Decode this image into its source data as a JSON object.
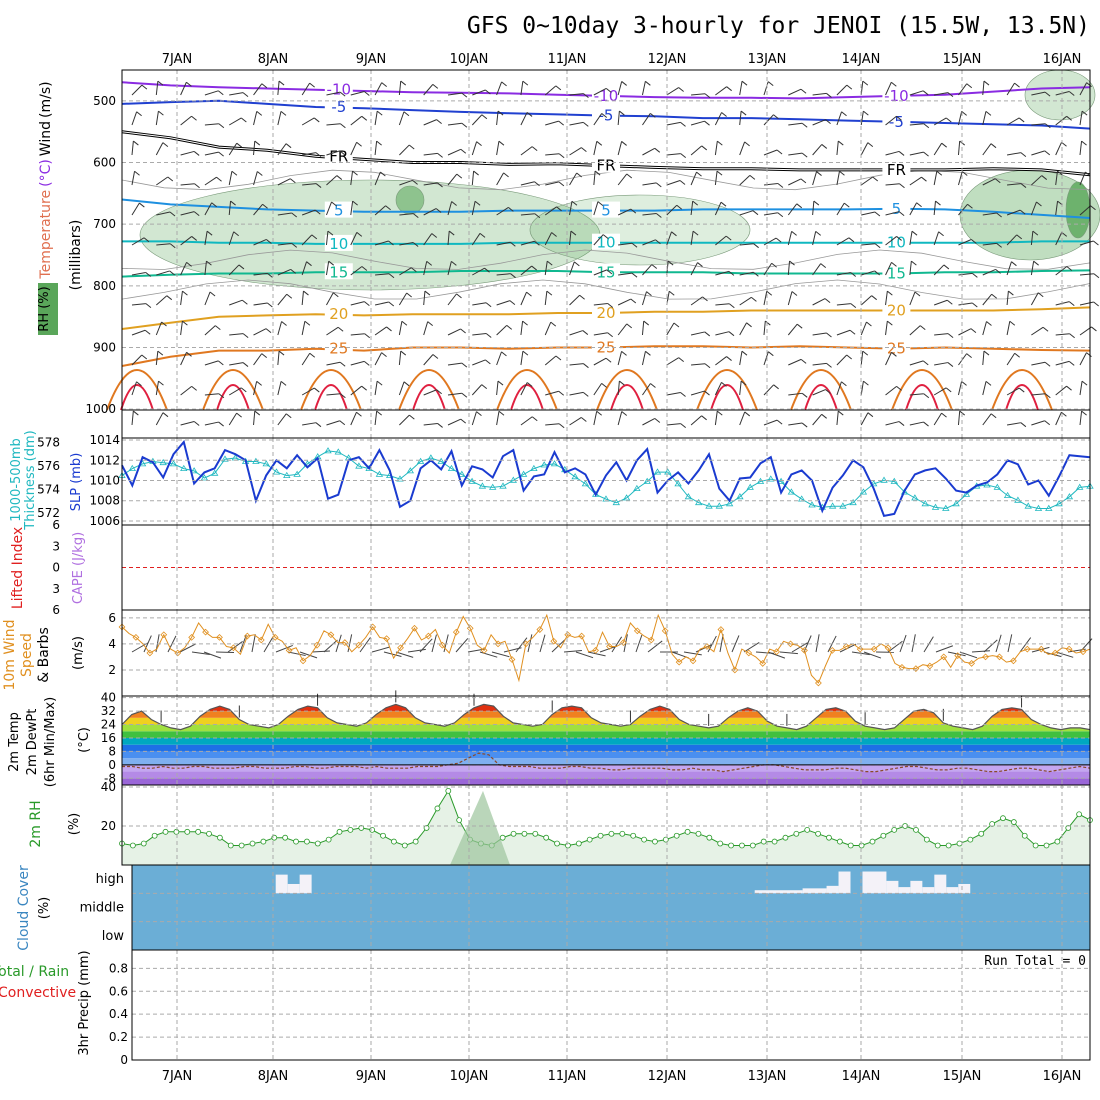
{
  "header": {
    "title": "GFS 0~10day 3-hourly for JENOI (15.5W, 13.5N)"
  },
  "date_labels": [
    "7JAN",
    "8JAN",
    "9JAN",
    "10JAN",
    "11JAN",
    "12JAN",
    "13JAN",
    "14JAN",
    "15JAN",
    "16JAN"
  ],
  "colors": {
    "temp_cold": "#8a2be2",
    "temp_m5": "#2040d0",
    "freezing": "#000000",
    "temp_5": "#1e90e0",
    "temp_10": "#10b8c0",
    "temp_15": "#10b890",
    "temp_20": "#e0a020",
    "temp_25": "#e07820",
    "temp_30": "#e02040",
    "slp": "#1a3bd0",
    "thickness": "#20b8c0",
    "lifted": "#e02020",
    "cape": "#b070e0",
    "wind10": "#e09020",
    "rh": "#2a9a2a",
    "cloud": "#6baed6",
    "grid": "#aaaaaa"
  },
  "chart_data": [
    {
      "id": "upper-air",
      "type": "line",
      "axis_label_parts": [
        "Temperature",
        "(°C)",
        "Wind",
        "(m/s)"
      ],
      "rh_label": "RH (%)",
      "y_axis_label": "(millibars)",
      "y_ticks": [
        500,
        600,
        700,
        800,
        900,
        1000
      ],
      "ylim": [
        450,
        1050
      ],
      "contours": [
        {
          "label": "-10",
          "color": "#8a2be2",
          "p": [
            470,
            475,
            478,
            480,
            482,
            484,
            486,
            487,
            488,
            490,
            492,
            494,
            495,
            495,
            496,
            494,
            492,
            490,
            485,
            480,
            478
          ]
        },
        {
          "label": "-5",
          "color": "#2040d0",
          "p": [
            505,
            502,
            500,
            505,
            510,
            512,
            515,
            518,
            520,
            522,
            524,
            525,
            528,
            528,
            530,
            532,
            534,
            536,
            538,
            540,
            545
          ]
        },
        {
          "label": "FR",
          "color": "#000000",
          "p": [
            550,
            560,
            575,
            580,
            590,
            595,
            600,
            600,
            603,
            602,
            605,
            608,
            610,
            610,
            612,
            612,
            612,
            612,
            610,
            612,
            620
          ]
        },
        {
          "label": "5",
          "color": "#1e90e0",
          "p": [
            660,
            668,
            672,
            676,
            678,
            680,
            680,
            680,
            678,
            678,
            678,
            678,
            676,
            676,
            676,
            676,
            675,
            676,
            680,
            685,
            690
          ]
        },
        {
          "label": "10",
          "color": "#10b8c0",
          "p": [
            728,
            728,
            730,
            730,
            732,
            732,
            732,
            732,
            730,
            730,
            730,
            730,
            730,
            730,
            730,
            730,
            730,
            730,
            730,
            728,
            728
          ]
        },
        {
          "label": "15",
          "color": "#10b890",
          "p": [
            785,
            782,
            780,
            780,
            778,
            778,
            778,
            776,
            776,
            776,
            778,
            778,
            778,
            780,
            780,
            780,
            780,
            778,
            778,
            776,
            775
          ]
        },
        {
          "label": "20",
          "color": "#e0a020",
          "p": [
            870,
            860,
            850,
            848,
            846,
            848,
            846,
            846,
            846,
            844,
            844,
            842,
            842,
            840,
            840,
            840,
            840,
            840,
            840,
            838,
            835
          ]
        },
        {
          "label": "25",
          "color": "#e07820",
          "p": [
            930,
            915,
            905,
            905,
            902,
            905,
            900,
            900,
            902,
            900,
            900,
            898,
            898,
            900,
            898,
            900,
            902,
            900,
            902,
            904,
            905
          ]
        }
      ]
    },
    {
      "id": "slp-thickness",
      "type": "line",
      "left_label_parts": [
        "1000-500mb",
        "Thickness (dm)"
      ],
      "right_label": "SLP (mb)",
      "thickness_ticks": [
        572,
        574,
        576,
        578
      ],
      "slp_ticks": [
        1006,
        1008,
        1010,
        1012,
        1014
      ],
      "thickness_lim": [
        571,
        578.4
      ],
      "slp_lim": [
        1005.6,
        1014.2
      ],
      "series": [
        {
          "axis": "slp",
          "values": [
            1011.5,
            1009.5,
            1012.3,
            1011.8,
            1010.3,
            1012.6,
            1013.8,
            1009.7,
            1010.8,
            1011.2,
            1013.0,
            1012.6,
            1012.0,
            1008.0,
            1010.5,
            1012.0,
            1011.2,
            1012.5,
            1011.3,
            1012.2,
            1008.2,
            1008.6,
            1012.0,
            1012.3,
            1011.2,
            1013.0,
            1011.0,
            1007.4,
            1008.0,
            1011.2,
            1012.0,
            1011.1,
            1012.9,
            1009.5,
            1011.4,
            1011.1,
            1010.3,
            1012.4,
            1013.0,
            1009.0,
            1010.4,
            1010.6,
            1012.8,
            1010.8,
            1011.2,
            1010.6,
            1008.6,
            1010.5,
            1011.8,
            1010.0,
            1012.0,
            1013.1,
            1008.8,
            1010.0,
            1010.8,
            1009.7,
            1011.0,
            1012.6,
            1009.2,
            1008.0,
            1010.2,
            1010.3,
            1011.7,
            1012.3,
            1008.8,
            1010.6,
            1011.0,
            1010.0,
            1007.0,
            1009.3,
            1010.5,
            1012.0,
            1011.3,
            1009.2,
            1006.5,
            1006.7,
            1009.0,
            1010.6,
            1011.0,
            1011.2,
            1010.2,
            1009.0,
            1008.8,
            1009.5,
            1009.8,
            1010.6,
            1012.0,
            1011.6,
            1009.6,
            1010.0,
            1008.5,
            1010.4,
            1012.5,
            1012.4,
            1012.3
          ]
        },
        {
          "axis": "thickness",
          "values": [
            575.2,
            575.8,
            576.2,
            576.4,
            576.3,
            576.2,
            575.8,
            575.6,
            575.0,
            575.4,
            576.6,
            576.7,
            576.4,
            576.4,
            576.2,
            575.5,
            575.2,
            575.3,
            576.2,
            576.8,
            577.3,
            577.2,
            576.7,
            576.0,
            575.8,
            575.3,
            575.2,
            574.9,
            575.6,
            576.4,
            576.7,
            576.4,
            575.8,
            575.3,
            574.7,
            574.3,
            574.2,
            574.3,
            574.8,
            575.3,
            575.8,
            576.1,
            576.2,
            575.7,
            575.1,
            574.5,
            573.6,
            573.2,
            572.9,
            573.3,
            574.1,
            574.7,
            575.5,
            575.5,
            574.5,
            573.4,
            572.9,
            572.6,
            572.6,
            572.8,
            573.4,
            574.2,
            574.7,
            574.9,
            574.7,
            573.8,
            573.2,
            572.7,
            572.5,
            572.6,
            572.6,
            572.9,
            573.8,
            574.5,
            574.8,
            574.7,
            573.8,
            573.3,
            572.8,
            572.5,
            572.4,
            572.8,
            573.6,
            574.3,
            574.4,
            574.2,
            573.5,
            573.1,
            572.6,
            572.4,
            572.4,
            572.8,
            573.4,
            574.2,
            574.3
          ]
        }
      ]
    },
    {
      "id": "lifted-cape",
      "type": "line",
      "left_label": "Lifted Index",
      "right_label": "CAPE (J/kg)",
      "y_ticks": [
        6,
        3,
        0,
        3,
        6
      ],
      "ylim": [
        -6,
        6
      ],
      "series": [
        {
          "name": "Lifted Index",
          "values": [
            0
          ]
        }
      ]
    },
    {
      "id": "wind10m",
      "type": "line",
      "left_label_parts": [
        "10m Wind",
        "Speed",
        "& Barbs"
      ],
      "unit": "(m/s)",
      "y_ticks": [
        2,
        4,
        6
      ],
      "ylim": [
        0,
        6.6
      ],
      "series": [
        {
          "values": [
            5.3,
            4.8,
            4.5,
            4.0,
            3.3,
            3.6,
            4.7,
            3.6,
            3.3,
            3.7,
            4.5,
            5.6,
            4.9,
            4.5,
            4.5,
            3.8,
            3.7,
            3.2,
            4.6,
            4.7,
            4.3,
            5.5,
            4.5,
            4.2,
            3.5,
            3.7,
            2.7,
            3.1,
            3.9,
            5.0,
            4.7,
            4.1,
            4.1,
            3.4,
            3.9,
            4.5,
            5.3,
            4.5,
            4.4,
            2.9,
            3.7,
            4.4,
            5.2,
            4.3,
            4.6,
            5.1,
            3.9,
            3.3,
            4.9,
            6.1,
            5.2,
            3.9,
            3.5,
            4.7,
            4.0,
            4.2,
            2.8,
            1.2,
            4.0,
            4.5,
            5.1,
            6.2,
            4.2,
            3.7,
            4.7,
            4.5,
            4.6,
            3.4,
            3.5,
            4.9,
            3.8,
            3.8,
            4.1,
            5.6,
            5.0,
            4.6,
            4.3,
            6.2,
            5.0,
            3.2,
            2.6,
            3.0,
            2.7,
            3.6,
            3.8,
            3.4,
            5.1,
            3.3,
            2.0,
            3.6,
            3.3,
            3.0,
            2.5,
            3.6,
            3.4,
            4.2,
            4.0,
            3.9,
            3.5,
            1.6,
            1.0,
            2.3,
            3.5,
            3.5,
            3.8,
            4.0,
            3.6,
            3.6,
            3.6,
            4.0,
            3.7,
            2.5,
            2.2,
            2.1,
            2.1,
            2.4,
            2.3,
            2.6,
            3.0,
            2.2,
            3.1,
            2.6,
            2.5,
            2.9,
            3.0,
            3.1,
            3.0,
            2.6,
            2.7,
            3.4,
            3.6,
            3.6,
            3.6,
            3.2,
            3.3,
            3.7,
            3.6,
            3.3,
            3.4,
            3.6
          ]
        }
      ]
    },
    {
      "id": "temp2m",
      "type": "area",
      "left_label_parts": [
        "2m Temp",
        "2m DewPt",
        "(6hr Min/Max)"
      ],
      "unit": "(°C)",
      "y_ticks": [
        40,
        32,
        24,
        16,
        8,
        0,
        -8
      ],
      "ylim": [
        -12,
        41
      ],
      "series": [
        {
          "name": "temp",
          "values": [
            24,
            30,
            32,
            27,
            24,
            22,
            21,
            23,
            29,
            33,
            35,
            33,
            27,
            24,
            23,
            22,
            24,
            29,
            33,
            35,
            34,
            28,
            25,
            24,
            23,
            25,
            30,
            34,
            36,
            34,
            28,
            25,
            24,
            23,
            25,
            30,
            34,
            36,
            35,
            29,
            25,
            24,
            23,
            24,
            30,
            34,
            35,
            34,
            28,
            25,
            24,
            23,
            24,
            29,
            33,
            35,
            33,
            27,
            24,
            23,
            22,
            23,
            28,
            32,
            34,
            32,
            26,
            23,
            22,
            21,
            23,
            28,
            33,
            34,
            32,
            26,
            23,
            22,
            21,
            22,
            27,
            32,
            33,
            31,
            25,
            23,
            22,
            21,
            23,
            29,
            33,
            34,
            33,
            27,
            24,
            22,
            21,
            22,
            22,
            21
          ]
        },
        {
          "name": "dewpt",
          "values": [
            -1,
            -1,
            -2,
            -2,
            -1,
            -2,
            -2,
            -1,
            -1,
            -2,
            -2,
            -2,
            -1,
            -1,
            -2,
            -2,
            -2,
            -1,
            -1,
            -2,
            -2,
            -1,
            -1,
            -1,
            -2,
            -1,
            -2,
            -2,
            -2,
            -1,
            -1,
            -1,
            0,
            1,
            4,
            7,
            6,
            0,
            -1,
            -1,
            -1,
            -2,
            -2,
            -2,
            -1,
            -1,
            -2,
            -2,
            -3,
            -3,
            -2,
            -2,
            -2,
            -2,
            -3,
            -3,
            -2,
            -3,
            -3,
            -4,
            -3,
            -2,
            -1,
            0,
            0,
            -1,
            -2,
            -3,
            -3,
            -3,
            -2,
            -2,
            -3,
            -4,
            -4,
            -3,
            -2,
            -1,
            -1,
            -2,
            -3,
            -3,
            -2,
            -2,
            -3,
            -4,
            -4,
            -3,
            -2,
            -2,
            -3,
            -4,
            -3,
            -2,
            -1,
            -2
          ]
        }
      ]
    },
    {
      "id": "rh2m",
      "type": "area",
      "left_label": "2m RH",
      "unit": "(%)",
      "y_ticks": [
        20,
        40
      ],
      "ylim": [
        0,
        41
      ],
      "series": [
        {
          "values": [
            11,
            10,
            11,
            15,
            17,
            17,
            17,
            17,
            16,
            14,
            10,
            10,
            11,
            12,
            14,
            14,
            12,
            12,
            11,
            13,
            17,
            18,
            19,
            18,
            15,
            12,
            10,
            12,
            19,
            29,
            38,
            23,
            13,
            11,
            10,
            14,
            16,
            16,
            16,
            14,
            11,
            10,
            11,
            13,
            15,
            16,
            16,
            15,
            13,
            12,
            13,
            15,
            17,
            16,
            14,
            11,
            10,
            10,
            10,
            12,
            12,
            14,
            16,
            18,
            16,
            14,
            12,
            10,
            10,
            12,
            15,
            18,
            20,
            18,
            13,
            10,
            10,
            11,
            13,
            16,
            21,
            24,
            22,
            15,
            10,
            10,
            12,
            19,
            26,
            23
          ]
        }
      ]
    },
    {
      "id": "cloud",
      "type": "bar",
      "left_label": "Cloud Cover",
      "unit": "(%)",
      "levels": [
        "high",
        "middle",
        "low"
      ],
      "high_cover_gaps": [
        {
          "time_index": [
            12,
            13
          ],
          "depth": 0.3
        },
        {
          "time_index": [
            13,
            14
          ],
          "depth": 0.15
        },
        {
          "time_index": [
            14,
            15
          ],
          "depth": 0.3
        },
        {
          "time_index": [
            52,
            56
          ],
          "depth": 0.05
        },
        {
          "time_index": [
            56,
            58
          ],
          "depth": 0.08
        },
        {
          "time_index": [
            58,
            59
          ],
          "depth": 0.12
        },
        {
          "time_index": [
            59,
            60
          ],
          "depth": 0.35
        },
        {
          "time_index": [
            61,
            63
          ],
          "depth": 0.35
        },
        {
          "time_index": [
            63,
            64
          ],
          "depth": 0.2
        },
        {
          "time_index": [
            64,
            65
          ],
          "depth": 0.1
        },
        {
          "time_index": [
            65,
            66
          ],
          "depth": 0.2
        },
        {
          "time_index": [
            66,
            67
          ],
          "depth": 0.1
        },
        {
          "time_index": [
            67,
            68
          ],
          "depth": 0.3
        },
        {
          "time_index": [
            68,
            69
          ],
          "depth": 0.1
        },
        {
          "time_index": [
            69,
            70
          ],
          "depth": 0.15
        }
      ]
    },
    {
      "id": "precip",
      "type": "bar",
      "left_label_parts": [
        "Total / Rain",
        "Convective"
      ],
      "unit": "3hr Precip (mm)",
      "y_ticks": [
        0,
        0.2,
        0.4,
        0.6,
        0.8
      ],
      "ylim": [
        0,
        0.96
      ],
      "run_total": "Run Total = 0",
      "values": []
    }
  ]
}
